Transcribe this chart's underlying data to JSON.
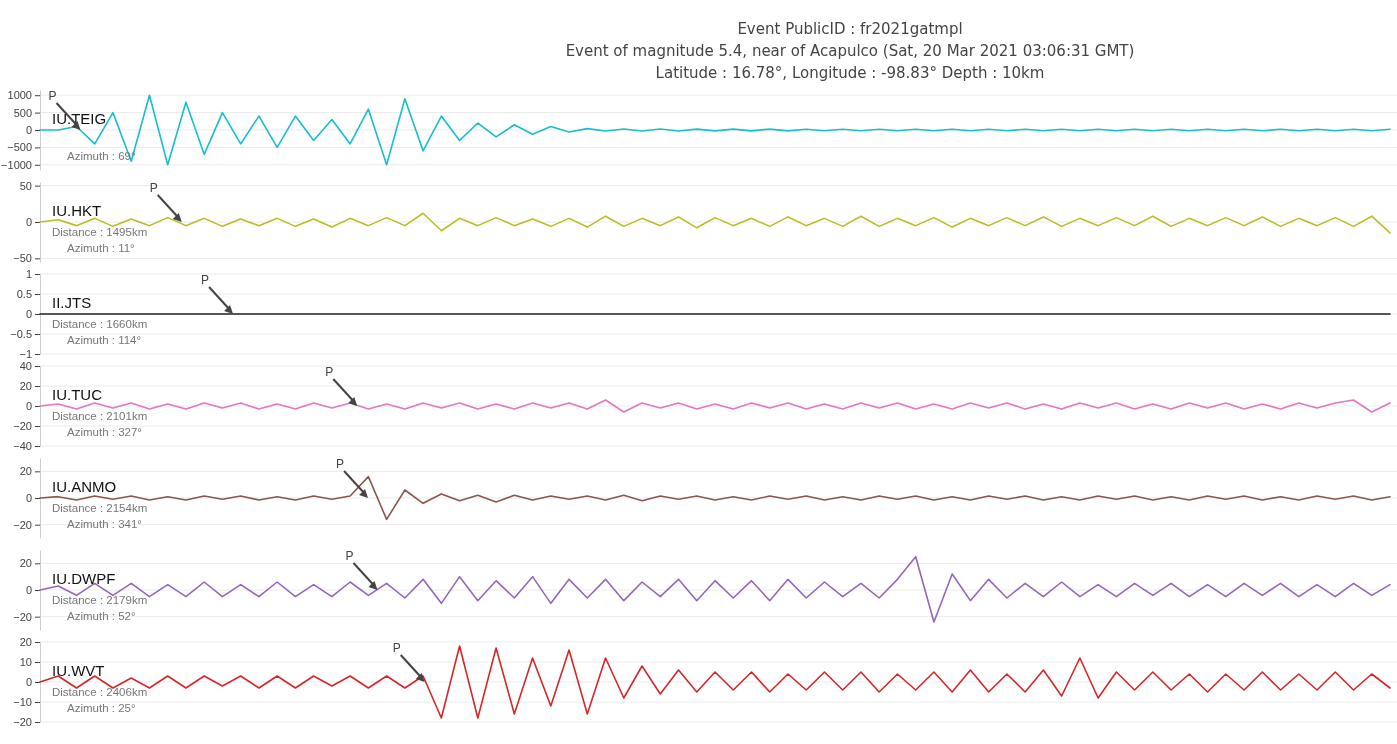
{
  "chart_data": [
    {
      "type": "other",
      "title": "Event PublicID : fr2021gatmpl",
      "subtitle": "Event of magnitude 5.4, near of Acapulco (Sat, 20 Mar 2021 03:06:31 GMT)\nLatitude : 16.78°, Longitude : -98.83° Depth : 10km"
    },
    {
      "type": "line",
      "categories": [
        null,
        null,
        null,
        null,
        null,
        null,
        null,
        null,
        null,
        null,
        null,
        null,
        null,
        null,
        null,
        null,
        null,
        null,
        null,
        null,
        null,
        null,
        null,
        null,
        null,
        null,
        null,
        null,
        null,
        null,
        null,
        null,
        null,
        null,
        null,
        null,
        null,
        null,
        null,
        null,
        null,
        null,
        null,
        null,
        null,
        null,
        null,
        null,
        null,
        null,
        null,
        null,
        null,
        null,
        null,
        null,
        null,
        null,
        null,
        null,
        null,
        null,
        null,
        null,
        null,
        null,
        null,
        null,
        null,
        null,
        null,
        null,
        null,
        null,
        null
      ],
      "ylim": [
        -1150,
        1150
      ],
      "yticks": [
        -1000,
        -500,
        0,
        500,
        1000
      ],
      "grid": "y",
      "annotations": [
        "P",
        "Azimuth : 69°"
      ],
      "series": [
        {
          "name": "IU.TEIG",
          "color": "#17becf",
          "values": [
            0,
            0,
            100,
            -400,
            500,
            -900,
            1000,
            -1000,
            800,
            -700,
            500,
            -400,
            400,
            -500,
            400,
            -300,
            300,
            -400,
            600,
            -1000,
            900,
            -600,
            400,
            -300,
            200,
            -200,
            150,
            -120,
            100,
            -60,
            40,
            -30,
            30,
            -30,
            30,
            -30,
            25,
            -25,
            25,
            -25,
            25,
            -25,
            20,
            -20,
            20,
            -20,
            20,
            -20,
            20,
            -20,
            20,
            -20,
            20,
            -20,
            20,
            -20,
            20,
            -20,
            20,
            -20,
            20,
            -20,
            20,
            -20,
            20,
            -20,
            20,
            -20,
            20,
            -20,
            20,
            -20,
            20,
            -20,
            20
          ]
        }
      ]
    },
    {
      "type": "line",
      "categories": [
        null,
        null,
        null,
        null,
        null,
        null,
        null,
        null,
        null,
        null,
        null,
        null,
        null,
        null,
        null,
        null,
        null,
        null,
        null,
        null,
        null,
        null,
        null,
        null,
        null,
        null,
        null,
        null,
        null,
        null,
        null,
        null,
        null,
        null,
        null,
        null,
        null,
        null,
        null,
        null,
        null,
        null,
        null,
        null,
        null,
        null,
        null,
        null,
        null,
        null,
        null,
        null,
        null,
        null,
        null,
        null,
        null,
        null,
        null,
        null,
        null,
        null,
        null,
        null,
        null,
        null,
        null,
        null,
        null,
        null,
        null,
        null,
        null,
        null,
        null
      ],
      "ylim": [
        -55,
        55
      ],
      "yticks": [
        -50,
        0,
        50
      ],
      "grid": "y",
      "annotations": [
        "P",
        "Distance : 1495km",
        "Azimuth : 11°"
      ],
      "series": [
        {
          "name": "IU.HKT",
          "color": "#bcbd22",
          "values": [
            0,
            3,
            -5,
            5,
            -6,
            4,
            -5,
            6,
            -5,
            5,
            -6,
            4,
            -5,
            5,
            -6,
            4,
            -7,
            5,
            -5,
            6,
            -5,
            12,
            -12,
            5,
            -5,
            6,
            -5,
            4,
            -6,
            5,
            -7,
            8,
            -6,
            5,
            -5,
            7,
            -8,
            6,
            -5,
            5,
            -6,
            7,
            -5,
            5,
            -6,
            8,
            -6,
            5,
            -5,
            6,
            -7,
            5,
            -5,
            6,
            -5,
            7,
            -6,
            5,
            -5,
            6,
            -5,
            8,
            -6,
            5,
            -5,
            6,
            -5,
            7,
            -6,
            5,
            -5,
            6,
            -6,
            8,
            -15
          ]
        }
      ]
    },
    {
      "type": "line",
      "categories": [
        null,
        null,
        null,
        null,
        null,
        null,
        null,
        null,
        null,
        null,
        null,
        null,
        null,
        null,
        null,
        null,
        null,
        null,
        null,
        null,
        null,
        null,
        null,
        null,
        null,
        null,
        null,
        null,
        null,
        null,
        null,
        null,
        null,
        null,
        null,
        null,
        null,
        null,
        null,
        null,
        null,
        null,
        null,
        null,
        null,
        null,
        null,
        null,
        null,
        null,
        null,
        null,
        null,
        null,
        null,
        null,
        null,
        null,
        null,
        null,
        null,
        null,
        null,
        null,
        null,
        null,
        null,
        null,
        null,
        null,
        null,
        null,
        null,
        null,
        null
      ],
      "ylim": [
        -1,
        1
      ],
      "yticks": [
        -1,
        -0.5,
        0,
        0.5,
        1
      ],
      "grid": "y",
      "annotations": [
        "P",
        "Distance : 1660km",
        "Azimuth : 114°"
      ],
      "series": [
        {
          "name": "II.JTS",
          "color": "#222222",
          "values": [
            0,
            0,
            0,
            0,
            0,
            0,
            0,
            0,
            0,
            0,
            0,
            0,
            0,
            0,
            0,
            0,
            0,
            0,
            0,
            0,
            0,
            0,
            0,
            0,
            0,
            0,
            0,
            0,
            0,
            0,
            0,
            0,
            0,
            0,
            0,
            0,
            0,
            0,
            0,
            0,
            0,
            0,
            0,
            0,
            0,
            0,
            0,
            0,
            0,
            0,
            0,
            0,
            0,
            0,
            0,
            0,
            0,
            0,
            0,
            0,
            0,
            0,
            0,
            0,
            0,
            0,
            0,
            0,
            0,
            0,
            0,
            0,
            0,
            0,
            0
          ]
        }
      ]
    },
    {
      "type": "line",
      "categories": [
        null,
        null,
        null,
        null,
        null,
        null,
        null,
        null,
        null,
        null,
        null,
        null,
        null,
        null,
        null,
        null,
        null,
        null,
        null,
        null,
        null,
        null,
        null,
        null,
        null,
        null,
        null,
        null,
        null,
        null,
        null,
        null,
        null,
        null,
        null,
        null,
        null,
        null,
        null,
        null,
        null,
        null,
        null,
        null,
        null,
        null,
        null,
        null,
        null,
        null,
        null,
        null,
        null,
        null,
        null,
        null,
        null,
        null,
        null,
        null,
        null,
        null,
        null,
        null,
        null,
        null,
        null,
        null,
        null,
        null,
        null,
        null,
        null,
        null,
        null
      ],
      "ylim": [
        -40,
        40
      ],
      "yticks": [
        -40,
        -20,
        0,
        20,
        40
      ],
      "grid": "y",
      "annotations": [
        "P",
        "Distance : 2101km",
        "Azimuth : 327°"
      ],
      "series": [
        {
          "name": "IU.TUC",
          "color": "#e377c2",
          "values": [
            0,
            2,
            -3,
            3,
            -2,
            3,
            -3,
            2,
            -3,
            3,
            -2,
            3,
            -3,
            2,
            -3,
            3,
            -2,
            3,
            -3,
            2,
            -3,
            3,
            -2,
            3,
            -3,
            2,
            -3,
            3,
            -2,
            3,
            -3,
            6,
            -6,
            3,
            -2,
            3,
            -3,
            2,
            -3,
            3,
            -2,
            3,
            -3,
            2,
            -3,
            3,
            -2,
            3,
            -3,
            2,
            -3,
            3,
            -2,
            3,
            -3,
            2,
            -3,
            3,
            -2,
            3,
            -3,
            2,
            -3,
            3,
            -2,
            3,
            -3,
            2,
            -3,
            3,
            -2,
            3,
            6,
            -6,
            3
          ]
        }
      ]
    },
    {
      "type": "line",
      "categories": [
        null,
        null,
        null,
        null,
        null,
        null,
        null,
        null,
        null,
        null,
        null,
        null,
        null,
        null,
        null,
        null,
        null,
        null,
        null,
        null,
        null,
        null,
        null,
        null,
        null,
        null,
        null,
        null,
        null,
        null,
        null,
        null,
        null,
        null,
        null,
        null,
        null,
        null,
        null,
        null,
        null,
        null,
        null,
        null,
        null,
        null,
        null,
        null,
        null,
        null,
        null,
        null,
        null,
        null,
        null,
        null,
        null,
        null,
        null,
        null,
        null,
        null,
        null,
        null,
        null,
        null,
        null,
        null,
        null,
        null,
        null,
        null,
        null,
        null,
        null
      ],
      "ylim": [
        -30,
        30
      ],
      "yticks": [
        -20,
        0,
        20
      ],
      "grid": "y",
      "annotations": [
        "P",
        "Distance : 2154km",
        "Azimuth : 341°"
      ],
      "series": [
        {
          "name": "IU.ANMO",
          "color": "#8c564b",
          "values": [
            0,
            1,
            -1.5,
            1.5,
            -1,
            1.5,
            -1.5,
            1,
            -1.5,
            1.5,
            -1,
            1.5,
            -1.5,
            1,
            -1.5,
            1.5,
            -1,
            1.5,
            16,
            -16,
            6,
            -4,
            3,
            -2,
            2,
            -3,
            2,
            -1.5,
            1.5,
            -1,
            1.5,
            -1.5,
            2,
            -2,
            1.5,
            -1,
            1.5,
            -1.5,
            1,
            -1.5,
            1.5,
            -1,
            1.5,
            -1.5,
            1,
            -1.5,
            1.5,
            -1,
            1.5,
            -1.5,
            1,
            -1.5,
            1.5,
            -1,
            1.5,
            -1.5,
            1,
            -1.5,
            1.5,
            -1,
            1.5,
            -1.5,
            1,
            -1.5,
            1.5,
            -1,
            1.5,
            -1.5,
            1,
            -1.5,
            1.5,
            -1,
            1.5,
            -1.5,
            1
          ]
        }
      ]
    },
    {
      "type": "line",
      "categories": [
        null,
        null,
        null,
        null,
        null,
        null,
        null,
        null,
        null,
        null,
        null,
        null,
        null,
        null,
        null,
        null,
        null,
        null,
        null,
        null,
        null,
        null,
        null,
        null,
        null,
        null,
        null,
        null,
        null,
        null,
        null,
        null,
        null,
        null,
        null,
        null,
        null,
        null,
        null,
        null,
        null,
        null,
        null,
        null,
        null,
        null,
        null,
        null,
        null,
        null,
        null,
        null,
        null,
        null,
        null,
        null,
        null,
        null,
        null,
        null,
        null,
        null,
        null,
        null,
        null,
        null,
        null,
        null,
        null,
        null,
        null,
        null,
        null,
        null,
        null
      ],
      "ylim": [
        -30,
        30
      ],
      "yticks": [
        -20,
        0,
        20
      ],
      "grid": "y",
      "annotations": [
        "P",
        "Distance : 2179km",
        "Azimuth : 52°"
      ],
      "series": [
        {
          "name": "IU.DWPF",
          "color": "#9467bd",
          "values": [
            0,
            3,
            -4,
            5,
            -4,
            5,
            -5,
            4,
            -5,
            6,
            -5,
            4,
            -5,
            6,
            -5,
            4,
            -5,
            6,
            -4,
            5,
            -6,
            8,
            -10,
            10,
            -8,
            7,
            -6,
            10,
            -10,
            8,
            -6,
            8,
            -8,
            6,
            -5,
            8,
            -8,
            7,
            -6,
            7,
            -8,
            8,
            -6,
            6,
            -5,
            5,
            -6,
            8,
            25,
            -24,
            12,
            -8,
            8,
            -6,
            5,
            -5,
            6,
            -5,
            4,
            -5,
            5,
            -4,
            5,
            -5,
            4,
            -5,
            5,
            -4,
            5,
            -5,
            4,
            -5,
            5,
            -4,
            4
          ]
        }
      ]
    },
    {
      "type": "line",
      "categories": [
        null,
        null,
        null,
        null,
        null,
        null,
        null,
        null,
        null,
        null,
        null,
        null,
        null,
        null,
        null,
        null,
        null,
        null,
        null,
        null,
        null,
        null,
        null,
        null,
        null,
        null,
        null,
        null,
        null,
        null,
        null,
        null,
        null,
        null,
        null,
        null,
        null,
        null,
        null,
        null,
        null,
        null,
        null,
        null,
        null,
        null,
        null,
        null,
        null,
        null,
        null,
        null,
        null,
        null,
        null,
        null,
        null,
        null,
        null,
        null,
        null,
        null,
        null,
        null,
        null,
        null,
        null,
        null,
        null,
        null,
        null,
        null,
        null,
        null,
        null
      ],
      "ylim": [
        -20,
        20
      ],
      "yticks": [
        -20,
        -10,
        0,
        10,
        20
      ],
      "grid": "y",
      "annotations": [
        "P",
        "Distance : 2406km",
        "Azimuth : 25°"
      ],
      "series": [
        {
          "name": "IU.WVT",
          "color": "#d62728",
          "values": [
            0,
            3,
            -3,
            3,
            -3,
            2,
            -3,
            3,
            -3,
            3,
            -2,
            3,
            -3,
            3,
            -3,
            3,
            -2,
            3,
            -3,
            3,
            -3,
            3,
            -18,
            18,
            -18,
            17,
            -16,
            12,
            -12,
            16,
            -16,
            12,
            -8,
            8,
            -6,
            6,
            -5,
            5,
            -4,
            5,
            -5,
            4,
            -4,
            5,
            -4,
            5,
            -5,
            4,
            -4,
            5,
            -5,
            6,
            -5,
            4,
            -5,
            6,
            -7,
            12,
            -8,
            5,
            -4,
            5,
            -4,
            4,
            -5,
            4,
            -4,
            5,
            -4,
            4,
            -4,
            5,
            -4,
            4,
            -3
          ]
        }
      ]
    }
  ]
}
